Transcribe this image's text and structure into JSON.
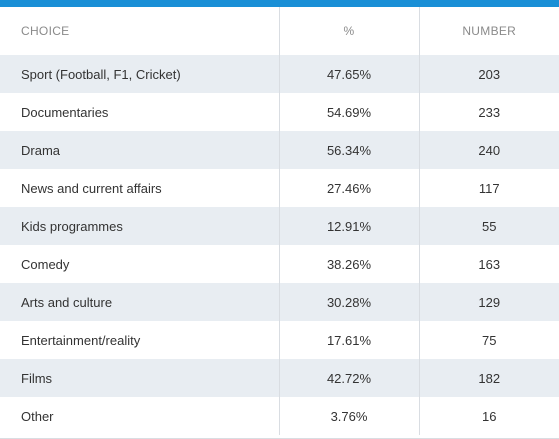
{
  "colors": {
    "accent_bar": "#1a8fd6",
    "row_shade": "#e8edf2",
    "header_text": "#8a8a8a",
    "body_text": "#333333",
    "divider": "#d9dde2"
  },
  "chart_data": {
    "type": "table",
    "columns": [
      "CHOICE",
      "%",
      "NUMBER"
    ],
    "rows": [
      {
        "choice": "Sport (Football, F1, Cricket)",
        "percent": "47.65%",
        "number": "203"
      },
      {
        "choice": "Documentaries",
        "percent": "54.69%",
        "number": "233"
      },
      {
        "choice": "Drama",
        "percent": "56.34%",
        "number": "240"
      },
      {
        "choice": "News and current affairs",
        "percent": "27.46%",
        "number": "117"
      },
      {
        "choice": "Kids programmes",
        "percent": "12.91%",
        "number": "55"
      },
      {
        "choice": "Comedy",
        "percent": "38.26%",
        "number": "163"
      },
      {
        "choice": "Arts and culture",
        "percent": "30.28%",
        "number": "129"
      },
      {
        "choice": "Entertainment/reality",
        "percent": "17.61%",
        "number": "75"
      },
      {
        "choice": "Films",
        "percent": "42.72%",
        "number": "182"
      },
      {
        "choice": "Other",
        "percent": "3.76%",
        "number": "16"
      }
    ]
  }
}
